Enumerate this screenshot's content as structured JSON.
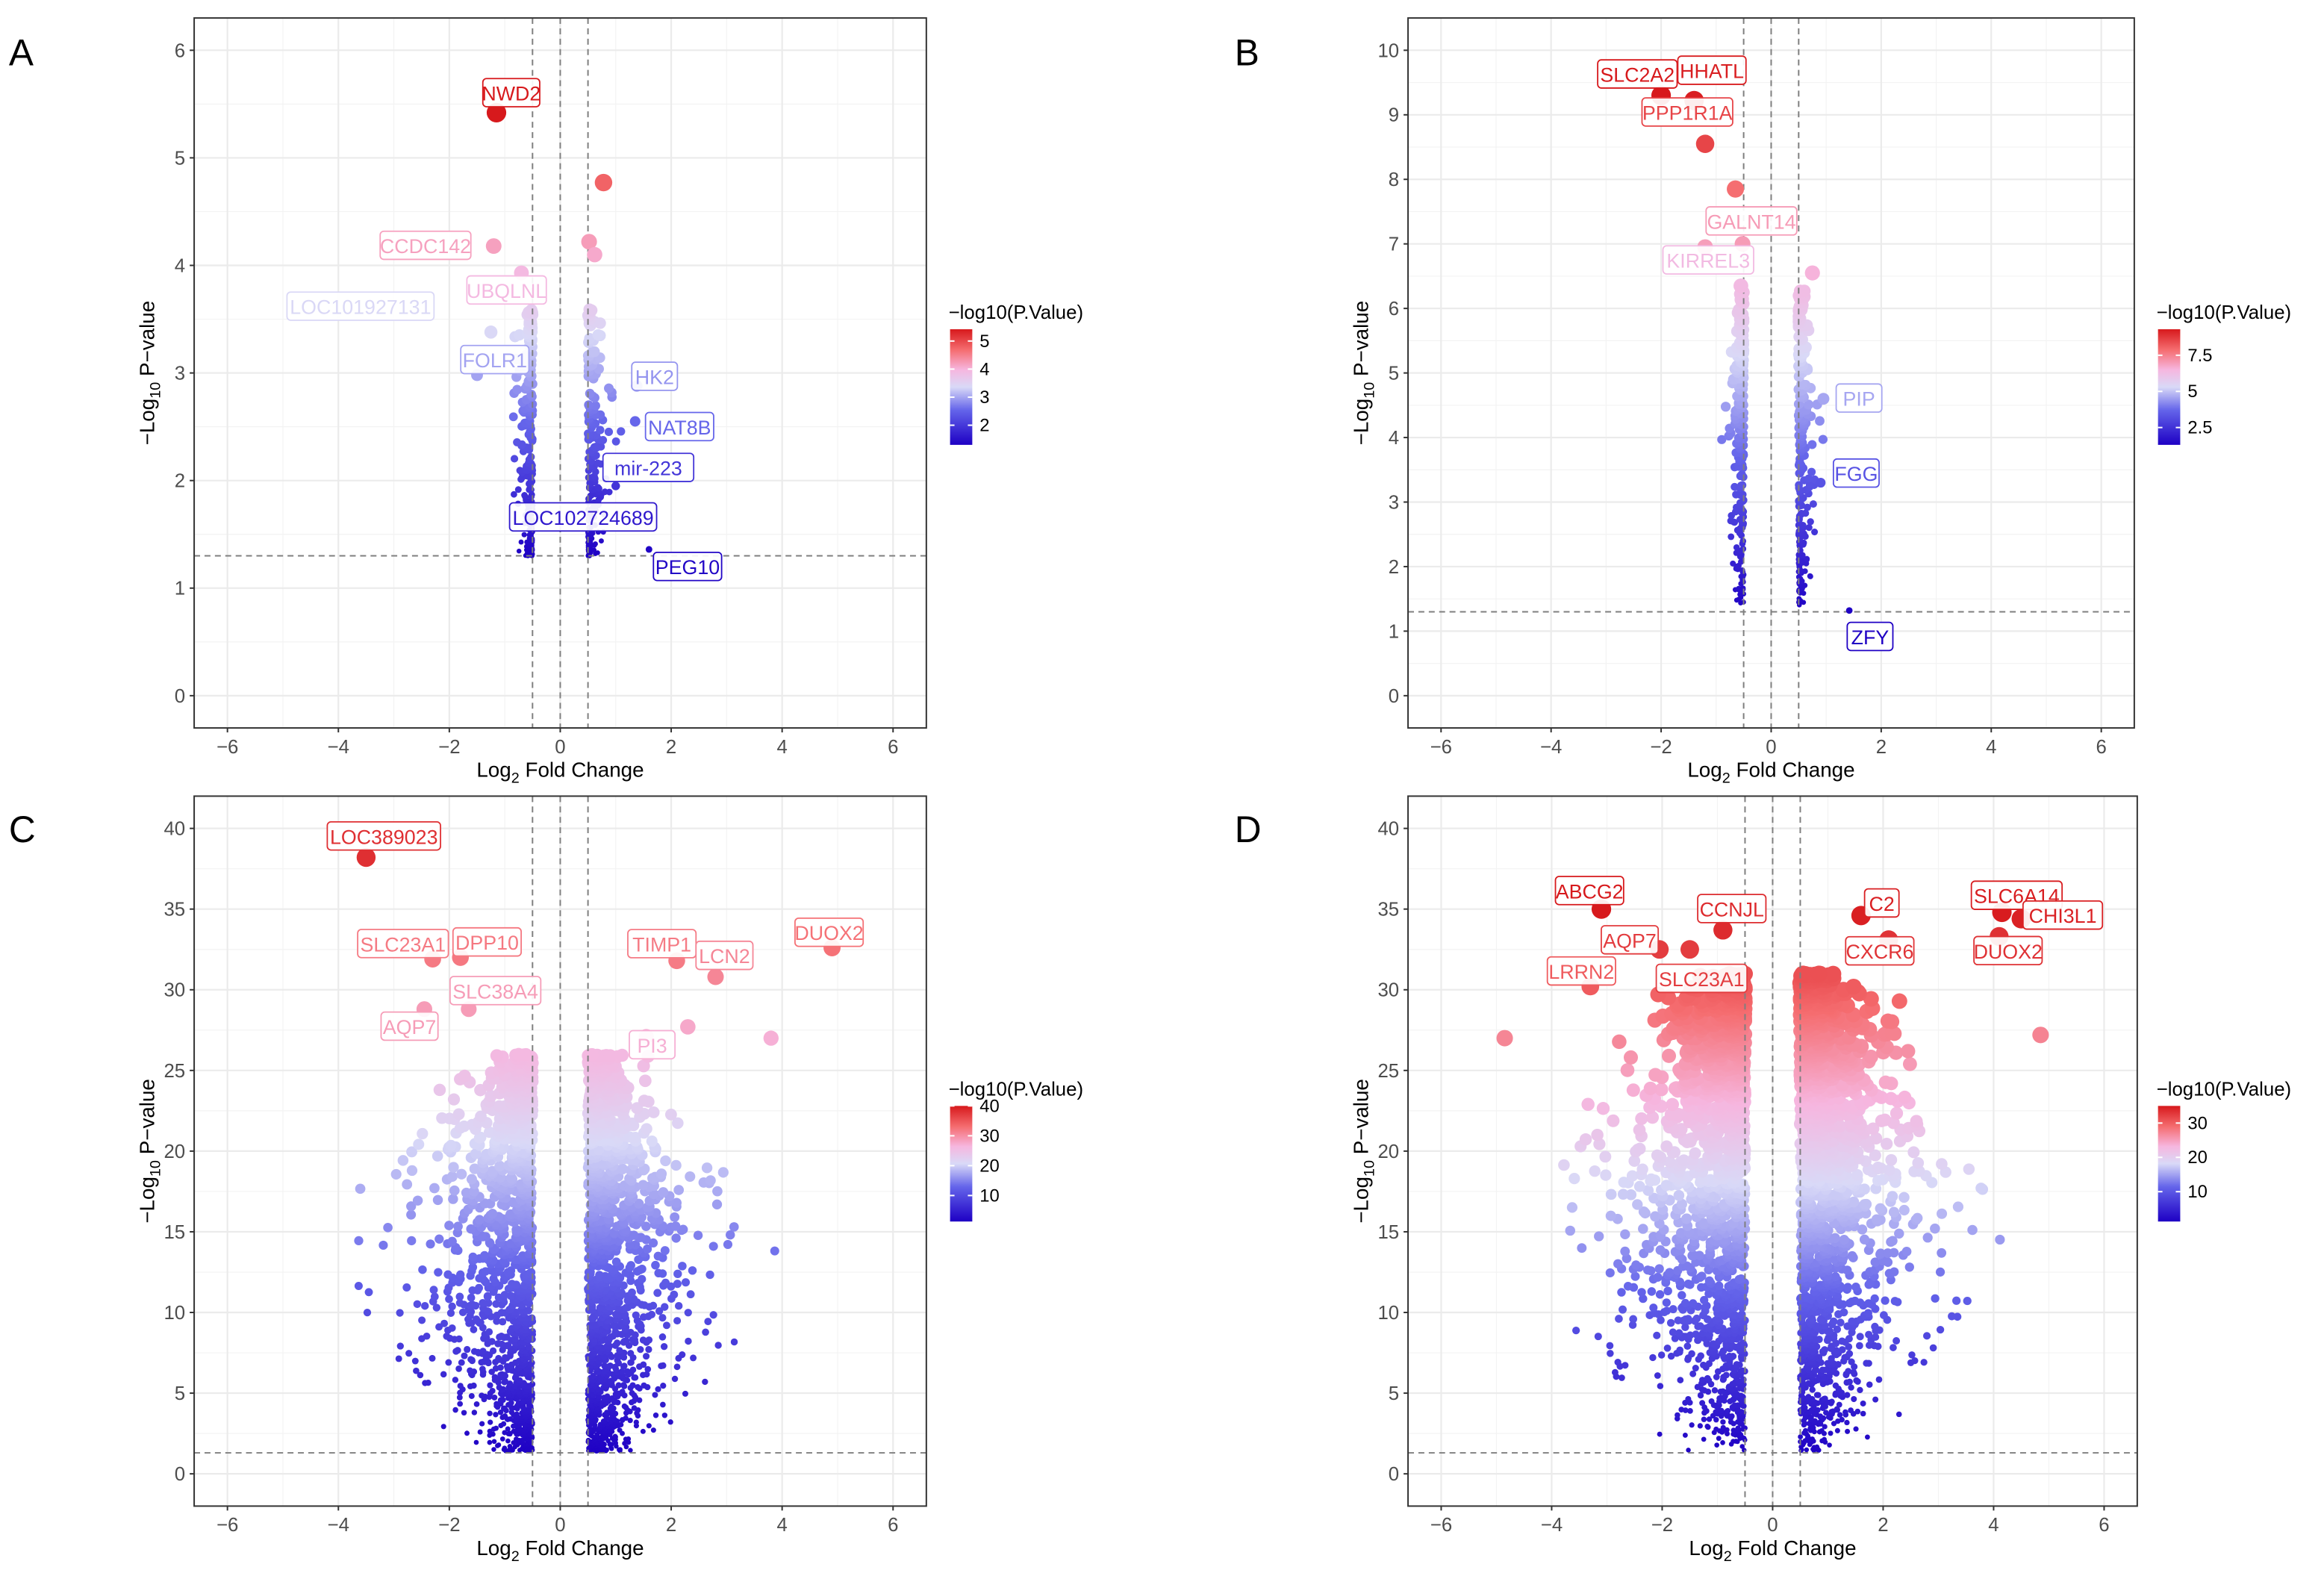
{
  "chart_data": [
    {
      "type": "scatter",
      "panel": "A",
      "xlabel": {
        "base": "Log",
        "sub": "2",
        "rest": " Fold Change"
      },
      "ylabel": {
        "base": "−Log",
        "sub": "10",
        "rest": " P−value"
      },
      "xlim": [
        -6.6,
        6.6
      ],
      "ylim": [
        -0.3,
        6.3
      ],
      "xticks": [
        -6,
        -4,
        -2,
        0,
        2,
        4,
        6
      ],
      "yticks": [
        0,
        1,
        2,
        3,
        4,
        5,
        6
      ],
      "vlines": [
        -0.5,
        0,
        0.5
      ],
      "hline": 1.3,
      "legend": {
        "title": "−log10(P.Value)",
        "ticks": [
          2,
          3,
          4,
          5
        ],
        "range": [
          1.3,
          5.42
        ],
        "placement": "right"
      },
      "cloud": {
        "seed": 11,
        "n": 420,
        "ymin": 1.3,
        "ymax": 3.6,
        "xmin": 0.5,
        "spread": 0.25,
        "pow": 1.6
      },
      "points": [
        {
          "gene": "NWD2",
          "x": -1.15,
          "y": 5.42
        },
        {
          "gene": "",
          "x": 0.78,
          "y": 4.77
        },
        {
          "gene": "CCDC142",
          "x": -1.2,
          "y": 4.18
        },
        {
          "gene": "",
          "x": 0.52,
          "y": 4.22
        },
        {
          "gene": "",
          "x": 0.62,
          "y": 4.1
        },
        {
          "gene": "UBQLNL",
          "x": -0.7,
          "y": 3.93
        },
        {
          "gene": "LOC101927131",
          "x": -1.25,
          "y": 3.38
        },
        {
          "gene": "HK2",
          "x": 1.38,
          "y": 2.88
        },
        {
          "gene": "FOLR1",
          "x": -1.5,
          "y": 2.98
        },
        {
          "gene": "NAT8B",
          "x": 1.35,
          "y": 2.55
        },
        {
          "gene": "mir-223",
          "x": 1.0,
          "y": 1.95
        },
        {
          "gene": "LOC102724689",
          "x": -0.55,
          "y": 1.6
        },
        {
          "gene": "PEG10",
          "x": 1.6,
          "y": 1.36
        }
      ]
    },
    {
      "type": "scatter",
      "panel": "B",
      "xlabel": {
        "base": "Log",
        "sub": "2",
        "rest": " Fold Change"
      },
      "ylabel": {
        "base": "−Log",
        "sub": "10",
        "rest": " P−value"
      },
      "xlim": [
        -6.6,
        6.6
      ],
      "ylim": [
        -0.5,
        10.5
      ],
      "xticks": [
        -6,
        -4,
        -2,
        0,
        2,
        4,
        6
      ],
      "yticks": [
        0,
        1,
        2,
        3,
        4,
        5,
        6,
        7,
        8,
        9,
        10
      ],
      "vlines": [
        -0.5,
        0,
        0.5
      ],
      "hline": 1.3,
      "legend": {
        "title": "−log10(P.Value)",
        "ticks": [
          2.5,
          5,
          7.5
        ],
        "range": [
          1.3,
          9.3
        ],
        "placement": "right"
      },
      "cloud": {
        "seed": 23,
        "n": 450,
        "ymin": 1.4,
        "ymax": 6.3,
        "xmin": 0.5,
        "spread": 0.17,
        "pow": 1.1
      },
      "points": [
        {
          "gene": "SLC2A2",
          "x": -2.0,
          "y": 9.3
        },
        {
          "gene": "HHATL",
          "x": -1.4,
          "y": 9.22
        },
        {
          "gene": "PPP1R1A",
          "x": -1.2,
          "y": 8.55
        },
        {
          "gene": "",
          "x": -0.65,
          "y": 7.85
        },
        {
          "gene": "GALNT14",
          "x": -0.52,
          "y": 7.0
        },
        {
          "gene": "",
          "x": -1.2,
          "y": 6.95
        },
        {
          "gene": "KIRREL3",
          "x": -0.55,
          "y": 6.35
        },
        {
          "gene": "",
          "x": 0.75,
          "y": 6.55
        },
        {
          "gene": "PIP",
          "x": 0.95,
          "y": 4.6
        },
        {
          "gene": "FGG",
          "x": 0.9,
          "y": 3.3
        },
        {
          "gene": "ZFY",
          "x": 1.42,
          "y": 1.32
        }
      ]
    },
    {
      "type": "scatter",
      "panel": "C",
      "xlabel": {
        "base": "Log",
        "sub": "2",
        "rest": " Fold Change"
      },
      "ylabel": {
        "base": "−Log",
        "sub": "10",
        "rest": " P−value"
      },
      "xlim": [
        -6.6,
        6.6
      ],
      "ylim": [
        -2,
        42
      ],
      "xticks": [
        -6,
        -4,
        -2,
        0,
        2,
        4,
        6
      ],
      "yticks": [
        0,
        5,
        10,
        15,
        20,
        25,
        30,
        35,
        40
      ],
      "vlines": [
        -0.5,
        0,
        0.5
      ],
      "hline": 1.3,
      "legend": {
        "title": "−log10(P.Value)",
        "ticks": [
          10,
          20,
          30,
          40
        ],
        "range": [
          1.3,
          40
        ],
        "placement": "right"
      },
      "cloud": {
        "seed": 37,
        "n": 2600,
        "ymin": 1.4,
        "ymax": 26,
        "xmin": 0.5,
        "spread": 0.75,
        "pow": 1.25
      },
      "points": [
        {
          "gene": "LOC389023",
          "x": -3.5,
          "y": 38.2
        },
        {
          "gene": "DPP10",
          "x": -1.8,
          "y": 32.0
        },
        {
          "gene": "SLC23A1",
          "x": -2.3,
          "y": 31.9
        },
        {
          "gene": "SLC38A4",
          "x": -1.65,
          "y": 28.8
        },
        {
          "gene": "AQP7",
          "x": -2.45,
          "y": 28.8
        },
        {
          "gene": "TIMP1",
          "x": 2.1,
          "y": 31.8
        },
        {
          "gene": "DUOX2",
          "x": 4.9,
          "y": 32.6
        },
        {
          "gene": "LCN2",
          "x": 2.8,
          "y": 30.8
        },
        {
          "gene": "PI3",
          "x": 1.55,
          "y": 27.1
        },
        {
          "gene": "",
          "x": 3.8,
          "y": 27.0
        },
        {
          "gene": "",
          "x": 2.3,
          "y": 27.7
        }
      ]
    },
    {
      "type": "scatter",
      "panel": "D",
      "xlabel": {
        "base": "Log",
        "sub": "2",
        "rest": " Fold Change"
      },
      "ylabel": {
        "base": "−Log",
        "sub": "10",
        "rest": " P−value"
      },
      "xlim": [
        -6.6,
        6.6
      ],
      "ylim": [
        -2,
        42
      ],
      "xticks": [
        -6,
        -4,
        -2,
        0,
        2,
        4,
        6
      ],
      "yticks": [
        0,
        5,
        10,
        15,
        20,
        25,
        30,
        35,
        40
      ],
      "vlines": [
        -0.5,
        0,
        0.5
      ],
      "hline": 1.3,
      "legend": {
        "title": "−log10(P.Value)",
        "ticks": [
          10,
          20,
          30
        ],
        "range": [
          1.3,
          35
        ],
        "placement": "right"
      },
      "cloud": {
        "seed": 51,
        "n": 3200,
        "ymin": 1.4,
        "ymax": 31,
        "xmin": 0.5,
        "spread": 0.85,
        "pow": 0.85,
        "center_offset": -0.3
      },
      "points": [
        {
          "gene": "ABCG2",
          "x": -3.1,
          "y": 35.0
        },
        {
          "gene": "CCNJL",
          "x": -0.9,
          "y": 33.7
        },
        {
          "gene": "C2",
          "x": 1.6,
          "y": 34.6
        },
        {
          "gene": "SLC6A14",
          "x": 4.15,
          "y": 34.8
        },
        {
          "gene": "CHI3L1",
          "x": 4.5,
          "y": 34.4
        },
        {
          "gene": "AQP7",
          "x": -2.05,
          "y": 32.5
        },
        {
          "gene": "CXCR6",
          "x": 2.1,
          "y": 33.1
        },
        {
          "gene": "DUOX2",
          "x": 4.1,
          "y": 33.3
        },
        {
          "gene": "LRRN2",
          "x": -3.3,
          "y": 30.2
        },
        {
          "gene": "SLC23A1",
          "x": -1.5,
          "y": 32.5
        },
        {
          "gene": "",
          "x": -4.85,
          "y": 27.0
        },
        {
          "gene": "",
          "x": 4.85,
          "y": 27.2
        }
      ]
    }
  ],
  "panel_letters": [
    "A",
    "B",
    "C",
    "D"
  ],
  "colors": {
    "low": "#1e00c4",
    "mid": "#d9d9f7",
    "high": "#d7191c",
    "grid": "#ebebeb",
    "dash": "#7f7f7f"
  }
}
